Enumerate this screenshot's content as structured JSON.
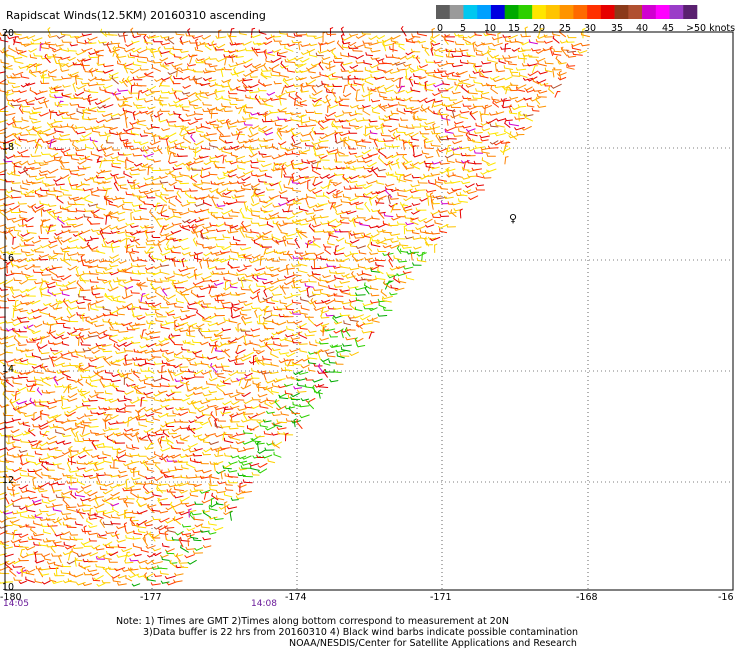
{
  "title": "Rapidscat Winds(12.5KM) 20160310 ascending",
  "colorbar": {
    "labels": [
      "0",
      "5",
      "10",
      "15",
      "20",
      "25",
      "30",
      "35",
      "40",
      "45",
      ">50 knots"
    ],
    "colors": [
      "#5e5e5e",
      "#9a9a9a",
      "#00c8f0",
      "#00a0ff",
      "#0000e0",
      "#00aa00",
      "#2ed000",
      "#ffe600",
      "#ffc400",
      "#ff9400",
      "#ff6a00",
      "#ff3000",
      "#e60000",
      "#8b3a1a",
      "#b05030",
      "#d000d0",
      "#ff00ff",
      "#9a3cc8",
      "#5a2070"
    ]
  },
  "axes": {
    "lon_labels": [
      "-180",
      "-177",
      "-174",
      "-171",
      "-168",
      "-16"
    ],
    "lat_labels": [
      "20",
      "18",
      "16",
      "14",
      "12",
      "10"
    ]
  },
  "times": {
    "left": "14:05",
    "mid": "14:08"
  },
  "notes": [
    "Note: 1) Times are GMT 2)Times along bottom correspond to measurement at 20N",
    "3)Data buffer is 22 hrs from 20160310 4) Black wind barbs indicate possible contamination",
    "NOAA/NESDIS/Center for Satellite Applications and Research"
  ],
  "island_marker": "♀"
}
